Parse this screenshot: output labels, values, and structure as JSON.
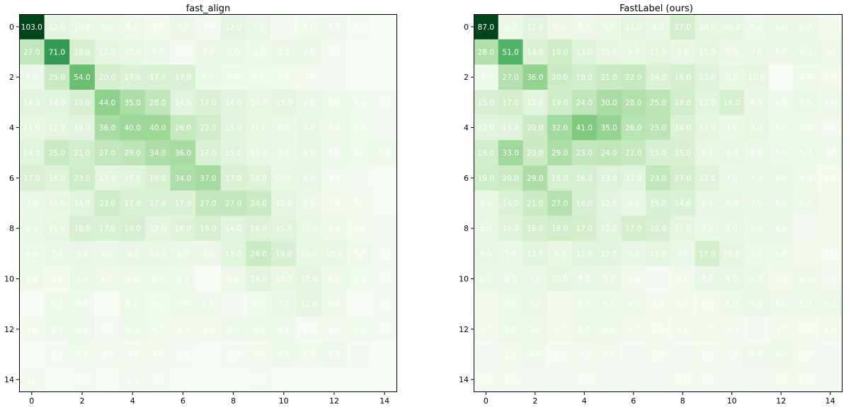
{
  "chart_data": [
    {
      "type": "heatmap",
      "title": "fast_align",
      "colormap": "Greens",
      "x_ticks": [
        "0",
        "2",
        "4",
        "6",
        "8",
        "10",
        "12",
        "14"
      ],
      "y_ticks": [
        "0",
        "2",
        "4",
        "6",
        "8",
        "10",
        "12",
        "14"
      ],
      "values": [
        [
          103,
          12,
          10,
          8,
          6,
          3,
          7,
          3,
          12,
          7,
          2,
          4,
          5,
          2,
          0
        ],
        [
          27,
          71,
          18,
          12,
          10,
          8,
          2,
          7,
          7,
          5,
          7,
          7,
          2,
          1,
          1
        ],
        [
          7,
          25,
          54,
          20,
          17,
          17,
          17,
          8,
          5,
          4,
          4,
          3,
          2,
          1,
          0
        ],
        [
          14,
          14,
          19,
          44,
          35,
          28,
          14,
          17,
          14,
          10,
          13,
          7,
          5,
          4,
          2
        ],
        [
          11,
          12,
          14,
          36,
          40,
          40,
          26,
          22,
          15,
          11,
          8,
          9,
          6,
          4,
          2
        ],
        [
          14,
          25,
          21,
          27,
          29,
          34,
          36,
          17,
          15,
          10,
          7,
          9,
          5,
          4,
          5
        ],
        [
          17,
          16,
          23,
          13,
          15,
          18,
          34,
          37,
          17,
          16,
          10,
          9,
          4,
          2,
          1
        ],
        [
          7,
          11,
          14,
          23,
          17,
          17,
          17,
          27,
          27,
          24,
          12,
          7,
          3,
          3,
          1
        ],
        [
          8,
          11,
          18,
          17,
          19,
          12,
          16,
          19,
          14,
          16,
          15,
          10,
          6,
          3,
          2
        ],
        [
          6,
          7,
          9,
          8,
          9,
          10,
          8,
          7,
          15,
          24,
          18,
          10,
          10,
          5,
          2
        ],
        [
          6,
          3,
          7,
          6,
          5,
          6,
          6,
          1,
          6,
          14,
          10,
          12,
          6,
          4,
          2
        ],
        [
          1,
          5,
          5,
          0,
          6,
          4,
          5,
          6,
          2,
          4,
          7,
          12,
          6,
          1,
          2
        ],
        [
          3,
          5,
          5,
          2,
          5,
          4,
          3,
          3,
          5,
          5,
          5,
          2,
          3,
          4,
          2
        ],
        [
          1,
          2,
          4,
          3,
          3,
          3,
          2,
          1,
          2,
          3,
          5,
          4,
          5,
          2,
          0
        ],
        [
          3,
          1,
          2,
          1,
          3,
          2,
          1,
          1,
          1,
          2,
          1,
          1,
          1,
          1,
          1
        ]
      ],
      "cell_labels": [
        [
          "103.0",
          "12.0",
          "10.0",
          "8.0",
          "6.0",
          "3.0",
          "7.0",
          "3.0",
          "12.0",
          "7.0",
          "",
          "4.0",
          "5.0",
          "2.0",
          ""
        ],
        [
          "27.0",
          "71.0",
          "18.0",
          "12.0",
          "10.0",
          "8.0",
          "2.0",
          "7.0",
          "7.0",
          "5.0",
          "7.0",
          "7.0",
          "2.0",
          "",
          ""
        ],
        [
          "7.0",
          "25.0",
          "54.0",
          "20.0",
          "17.0",
          "17.0",
          "17.0",
          "8.0",
          "5.0",
          "4.0",
          "4.0",
          "3.0",
          "",
          "",
          ""
        ],
        [
          "14.0",
          "14.0",
          "19.0",
          "44.0",
          "35.0",
          "28.0",
          "14.0",
          "17.0",
          "14.0",
          "10.0",
          "13.0",
          "7.0",
          "5.0",
          "4.0",
          "2.0"
        ],
        [
          "11.0",
          "12.0",
          "14.0",
          "36.0",
          "40.0",
          "40.0",
          "26.0",
          "22.0",
          "15.0",
          "11.0",
          "8.0",
          "9.0",
          "6.0",
          "4.0",
          ""
        ],
        [
          "14.0",
          "25.0",
          "21.0",
          "27.0",
          "29.0",
          "34.0",
          "36.0",
          "17.0",
          "15.0",
          "10.0",
          "7.0",
          "9.0",
          "5.0",
          "4.0",
          "5.0"
        ],
        [
          "17.0",
          "16.0",
          "23.0",
          "13.0",
          "15.0",
          "18.0",
          "34.0",
          "37.0",
          "17.0",
          "16.0",
          "10.0",
          "9.0",
          "4.0",
          "",
          ""
        ],
        [
          "7.0",
          "11.0",
          "14.0",
          "23.0",
          "17.0",
          "17.0",
          "17.0",
          "27.0",
          "27.0",
          "24.0",
          "12.0",
          "7.0",
          "3.0",
          "3.0",
          ""
        ],
        [
          "8.0",
          "11.0",
          "18.0",
          "17.0",
          "19.0",
          "12.0",
          "16.0",
          "19.0",
          "14.0",
          "16.0",
          "15.0",
          "10.0",
          "6.0",
          "3.0",
          ""
        ],
        [
          "6.0",
          "7.0",
          "9.0",
          "8.0",
          "9.0",
          "10.0",
          "8.0",
          "7.0",
          "15.0",
          "24.0",
          "18.0",
          "10.0",
          "10.0",
          "5.0",
          "2.0"
        ],
        [
          "6.0",
          "3.0",
          "7.0",
          "6.0",
          "5.0",
          "6.0",
          "6.0",
          "",
          "6.0",
          "14.0",
          "10.0",
          "12.0",
          "6.0",
          "4.0",
          "2.0"
        ],
        [
          "",
          "5.0",
          "5.0",
          "",
          "6.0",
          "4.0",
          "5.0",
          "6.0",
          "",
          "4.0",
          "7.0",
          "12.0",
          "6.0",
          "",
          "2.0"
        ],
        [
          "3.0",
          "5.0",
          "5.0",
          "2.0",
          "5.0",
          "4.0",
          "3.0",
          "3.0",
          "5.0",
          "5.0",
          "5.0",
          "2.0",
          "3.0",
          "4.0",
          "2.0"
        ],
        [
          "",
          "2.0",
          "4.0",
          "3.0",
          "3.0",
          "3.0",
          "2.0",
          "",
          "2.0",
          "3.0",
          "5.0",
          "4.0",
          "5.0",
          "",
          ""
        ],
        [
          "3.0",
          "",
          "2.0",
          "",
          "3.0",
          "2.0",
          "",
          "",
          "",
          "2.0",
          "",
          "",
          "",
          "",
          ""
        ]
      ]
    },
    {
      "type": "heatmap",
      "title": "FastLabel (ours)",
      "colormap": "Greens",
      "x_ticks": [
        "0",
        "2",
        "4",
        "6",
        "8",
        "10",
        "12",
        "14"
      ],
      "y_ticks": [
        "0",
        "2",
        "4",
        "6",
        "8",
        "10",
        "12",
        "14"
      ],
      "values": [
        [
          87,
          6,
          12,
          6,
          5,
          6,
          11,
          8,
          17,
          10,
          10,
          5,
          6,
          6,
          2
        ],
        [
          28,
          51,
          14,
          19,
          13,
          10,
          9,
          11,
          9,
          11,
          6,
          7,
          6,
          6,
          5
        ],
        [
          4,
          27,
          36,
          20,
          18,
          21,
          22,
          14,
          16,
          13,
          8,
          10,
          0,
          4,
          3
        ],
        [
          15,
          17,
          12,
          19,
          24,
          30,
          28,
          25,
          18,
          12,
          16,
          8,
          4,
          6,
          4
        ],
        [
          12,
          13,
          20,
          32,
          41,
          35,
          26,
          25,
          14,
          11,
          7,
          9,
          5,
          4,
          3
        ],
        [
          18,
          33,
          20,
          29,
          23,
          24,
          22,
          15,
          15,
          9,
          8,
          6,
          5,
          5,
          4
        ],
        [
          19,
          20,
          29,
          16,
          16,
          13,
          12,
          23,
          17,
          13,
          7,
          7,
          6,
          4,
          2
        ],
        [
          9,
          14,
          21,
          27,
          16,
          12,
          8,
          15,
          14,
          9,
          8,
          7,
          6,
          5,
          3
        ],
        [
          8,
          13,
          16,
          18,
          17,
          12,
          17,
          15,
          11,
          7,
          8,
          6,
          6,
          1,
          2
        ],
        [
          9,
          7,
          12,
          9,
          12,
          12,
          8,
          11,
          7,
          17,
          10,
          5,
          5,
          2,
          2
        ],
        [
          6,
          6,
          7,
          10,
          8,
          8,
          3,
          1,
          3,
          8,
          8,
          6,
          3,
          4,
          3
        ],
        [
          2,
          5,
          6,
          2,
          5,
          5,
          4,
          3,
          3,
          2,
          5,
          6,
          5,
          5,
          5
        ],
        [
          3,
          5,
          5,
          3,
          5,
          4,
          3,
          2,
          3,
          3,
          3,
          1,
          3,
          2,
          3
        ],
        [
          1,
          3,
          4,
          2,
          3,
          3,
          1,
          2,
          1,
          2,
          3,
          4,
          4,
          2,
          1
        ],
        [
          2,
          2,
          1,
          1,
          2,
          1,
          1,
          1,
          2,
          2,
          1,
          1,
          2,
          2,
          1
        ]
      ],
      "cell_labels": [
        [
          "87.0",
          "6.0",
          "12.0",
          "6.0",
          "5.0",
          "6.0",
          "11.0",
          "8.0",
          "17.0",
          "10.0",
          "10.0",
          "5.0",
          "6.0",
          "6.0",
          ""
        ],
        [
          "28.0",
          "51.0",
          "14.0",
          "19.0",
          "13.0",
          "10.0",
          "9.0",
          "11.0",
          "9.0",
          "11.0",
          "6.0",
          "7.0",
          "6.0",
          "6.0",
          "5.0"
        ],
        [
          "4.0",
          "27.0",
          "36.0",
          "20.0",
          "18.0",
          "21.0",
          "22.0",
          "14.0",
          "16.0",
          "13.0",
          "8.0",
          "10.0",
          "",
          "4.0",
          "3.0"
        ],
        [
          "15.0",
          "17.0",
          "12.0",
          "19.0",
          "24.0",
          "30.0",
          "28.0",
          "25.0",
          "18.0",
          "12.0",
          "16.0",
          "8.0",
          "4.0",
          "6.0",
          "4.0"
        ],
        [
          "12.0",
          "13.0",
          "20.0",
          "32.0",
          "41.0",
          "35.0",
          "26.0",
          "25.0",
          "14.0",
          "11.0",
          "7.0",
          "9.0",
          "5.0",
          "4.0",
          "3.0"
        ],
        [
          "18.0",
          "33.0",
          "20.0",
          "29.0",
          "23.0",
          "24.0",
          "22.0",
          "15.0",
          "15.0",
          "9.0",
          "8.0",
          "6.0",
          "5.0",
          "5.0",
          "4.0"
        ],
        [
          "19.0",
          "20.0",
          "29.0",
          "16.0",
          "16.0",
          "13.0",
          "12.0",
          "23.0",
          "17.0",
          "13.0",
          "7.0",
          "7.0",
          "6.0",
          "4.0",
          "2.0"
        ],
        [
          "9.0",
          "14.0",
          "21.0",
          "27.0",
          "16.0",
          "12.0",
          "8.0",
          "15.0",
          "14.0",
          "9.0",
          "8.0",
          "7.0",
          "6.0",
          "5.0",
          ""
        ],
        [
          "8.0",
          "13.0",
          "16.0",
          "18.0",
          "17.0",
          "12.0",
          "17.0",
          "15.0",
          "11.0",
          "7.0",
          "8.0",
          "6.0",
          "6.0",
          "",
          ""
        ],
        [
          "9.0",
          "7.0",
          "12.0",
          "9.0",
          "12.0",
          "12.0",
          "8.0",
          "11.0",
          "7.0",
          "17.0",
          "10.0",
          "5.0",
          "5.0",
          "",
          "2.0"
        ],
        [
          "6.0",
          "6.0",
          "7.0",
          "10.0",
          "8.0",
          "8.0",
          "3.0",
          "",
          "3.0",
          "8.0",
          "8.0",
          "6.0",
          "3.0",
          "4.0",
          "3.0"
        ],
        [
          "",
          "5.0",
          "6.0",
          "",
          "5.0",
          "5.0",
          "4.0",
          "3.0",
          "3.0",
          "2.0",
          "5.0",
          "6.0",
          "5.0",
          "5.0",
          "5.0"
        ],
        [
          "3.0",
          "5.0",
          "5.0",
          "3.0",
          "5.0",
          "4.0",
          "3.0",
          "2.0",
          "3.0",
          "3.0",
          "3.0",
          "",
          "3.0",
          "2.0",
          "3.0"
        ],
        [
          "",
          "3.0",
          "4.0",
          "2.0",
          "3.0",
          "3.0",
          "",
          "2.0",
          "",
          "2.0",
          "3.0",
          "4.0",
          "4.0",
          "2.0",
          ""
        ],
        [
          "2.0",
          "2.0",
          "",
          "",
          "2.0",
          "",
          "",
          "",
          "2.0",
          "2.0",
          "",
          "",
          "2.0",
          "2.0",
          ""
        ]
      ]
    }
  ]
}
